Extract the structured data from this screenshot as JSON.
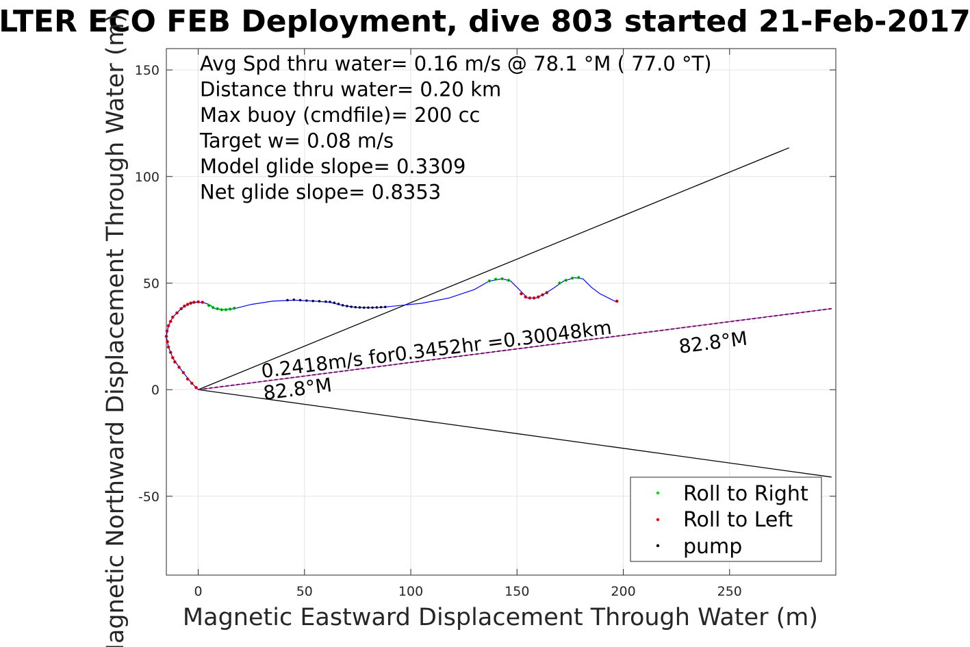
{
  "chart_data": {
    "type": "line",
    "title": "LTER ECO FEB Deployment, dive 803 started 21-Feb-2017",
    "xlabel": "Magnetic Eastward Displacement Through Water (m)",
    "ylabel": "Magnetic Northward Displacement Through Water (m)",
    "xlim": [
      -15,
      300
    ],
    "ylim": [
      -87,
      160
    ],
    "xticks": [
      0,
      50,
      100,
      150,
      200,
      250
    ],
    "yticks": [
      -50,
      0,
      50,
      100,
      150
    ],
    "xtick_labels": [
      "0",
      "50",
      "100",
      "150",
      "200",
      "250"
    ],
    "ytick_labels": [
      "-50",
      "0",
      "50",
      "100",
      "150"
    ],
    "grid": true,
    "legend_position": "bottom-right",
    "info_lines": [
      "Avg Spd thru water=  0.16 m/s @  78.1 °M ( 77.0 °T)",
      "Distance thru water=  0.20 km",
      "Max buoy (cmdfile)= 200 cc",
      "Target w= 0.08 m/s",
      "Model glide slope= 0.3309",
      "Net glide slope= 0.8353"
    ],
    "annotations": {
      "current": "0.2418m/s for0.3452hr =0.30048km",
      "heading_near": "82.8°M",
      "heading_far": "82.8°M"
    },
    "legend": [
      {
        "label": "Roll to Right",
        "color": "#00e000"
      },
      {
        "label": "Roll to Left",
        "color": "#ff0000"
      },
      {
        "label": "pump",
        "color": "#000000"
      }
    ],
    "series": [
      {
        "name": "track",
        "color": "#0000ff",
        "points": [
          [
            0,
            0
          ],
          [
            -3,
            3
          ],
          [
            -7,
            8
          ],
          [
            -10,
            12
          ],
          [
            -12,
            15
          ],
          [
            -14,
            20
          ],
          [
            -15,
            25
          ],
          [
            -14,
            30
          ],
          [
            -12,
            34
          ],
          [
            -8,
            38
          ],
          [
            -5,
            40
          ],
          [
            -2,
            41
          ],
          [
            2,
            41
          ],
          [
            5,
            40
          ],
          [
            8,
            38
          ],
          [
            12,
            37.5
          ],
          [
            17,
            38
          ],
          [
            25,
            40
          ],
          [
            35,
            41.5
          ],
          [
            45,
            42
          ],
          [
            55,
            41.5
          ],
          [
            62,
            41
          ],
          [
            68,
            39.5
          ],
          [
            75,
            38.5
          ],
          [
            85,
            38.5
          ],
          [
            95,
            39.5
          ],
          [
            105,
            40.5
          ],
          [
            118,
            43
          ],
          [
            130,
            47
          ],
          [
            137,
            51
          ],
          [
            143,
            52
          ],
          [
            147,
            51
          ],
          [
            151,
            47
          ],
          [
            155,
            43
          ],
          [
            159,
            43
          ],
          [
            163,
            45
          ],
          [
            167,
            47.5
          ],
          [
            172,
            51
          ],
          [
            177,
            52.5
          ],
          [
            181,
            52
          ],
          [
            185,
            48
          ],
          [
            189,
            45
          ],
          [
            197,
            41
          ]
        ]
      },
      {
        "name": "Roll to Right",
        "color": "#00e000",
        "points": [
          [
            5,
            39.5
          ],
          [
            7,
            38.5
          ],
          [
            9,
            38
          ],
          [
            11,
            37.5
          ],
          [
            13,
            37.5
          ],
          [
            15,
            37.8
          ],
          [
            17,
            38.2
          ],
          [
            137,
            51
          ],
          [
            140,
            51.8
          ],
          [
            143,
            52
          ],
          [
            146,
            51.3
          ],
          [
            170,
            50
          ],
          [
            173,
            51.3
          ],
          [
            176,
            52.3
          ],
          [
            179,
            52.6
          ]
        ]
      },
      {
        "name": "Roll to Left",
        "color": "#ff0000",
        "points": [
          [
            -1,
            1
          ],
          [
            -3,
            3
          ],
          [
            -5,
            5
          ],
          [
            -7,
            8
          ],
          [
            -9,
            10.5
          ],
          [
            -11,
            13
          ],
          [
            -12,
            15
          ],
          [
            -13,
            17.5
          ],
          [
            -14,
            20
          ],
          [
            -14.5,
            22.5
          ],
          [
            -15,
            25
          ],
          [
            -14.7,
            27.5
          ],
          [
            -14,
            30
          ],
          [
            -13,
            32
          ],
          [
            -12,
            34
          ],
          [
            -10,
            36
          ],
          [
            -8,
            38
          ],
          [
            -6.5,
            39.2
          ],
          [
            -5,
            40
          ],
          [
            -3.5,
            40.6
          ],
          [
            -2,
            41
          ],
          [
            0,
            41.2
          ],
          [
            2,
            41
          ],
          [
            152,
            45
          ],
          [
            154,
            43.5
          ],
          [
            156,
            43
          ],
          [
            158,
            43
          ],
          [
            160,
            43.5
          ],
          [
            162,
            44.5
          ],
          [
            164,
            45.5
          ],
          [
            197,
            41.5
          ]
        ]
      },
      {
        "name": "pump",
        "color": "#000000",
        "points": [
          [
            42,
            42
          ],
          [
            45,
            42.2
          ],
          [
            48,
            42
          ],
          [
            51,
            41.8
          ],
          [
            54,
            41.6
          ],
          [
            57,
            41.5
          ],
          [
            60,
            41.3
          ],
          [
            62,
            41.2
          ],
          [
            64,
            40.8
          ],
          [
            66,
            40.2
          ],
          [
            68,
            39.6
          ],
          [
            70,
            39.2
          ],
          [
            72,
            38.9
          ],
          [
            74,
            38.7
          ],
          [
            76,
            38.6
          ],
          [
            78,
            38.5
          ],
          [
            80,
            38.5
          ],
          [
            82,
            38.5
          ],
          [
            84,
            38.6
          ],
          [
            86,
            38.7
          ],
          [
            88,
            38.8
          ]
        ]
      },
      {
        "name": "envelope-upper",
        "color": "#000000",
        "points": [
          [
            0,
            0
          ],
          [
            278,
            113.5
          ]
        ]
      },
      {
        "name": "envelope-lower",
        "color": "#000000",
        "points": [
          [
            0,
            0
          ],
          [
            298,
            -41
          ]
        ]
      },
      {
        "name": "current-vector",
        "color": "#cc00cc",
        "points": [
          [
            0,
            0
          ],
          [
            298,
            38
          ]
        ]
      }
    ]
  }
}
